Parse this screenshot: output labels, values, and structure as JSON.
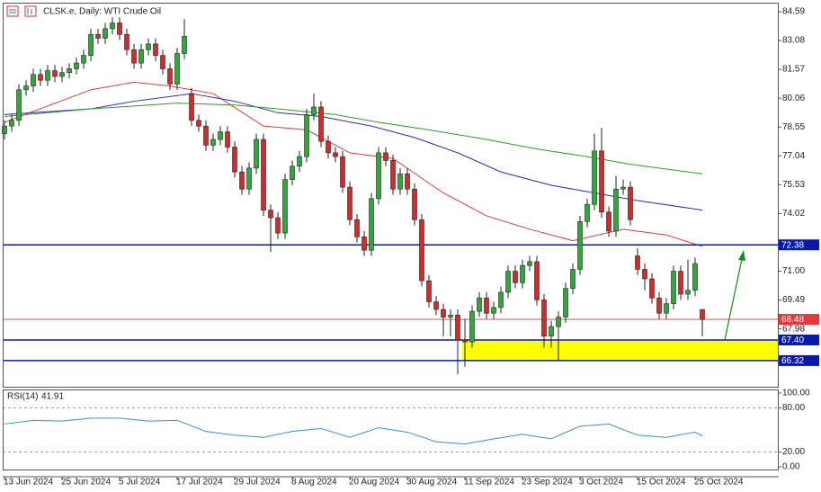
{
  "header": "CLSK.e, Daily: WTI Crude Oil",
  "chart_data": [
    {
      "type": "candlestick",
      "categories": [
        "13 Jun 2024",
        null,
        null,
        null,
        null,
        null,
        null,
        null,
        "25 Jun 2024",
        null,
        null,
        null,
        null,
        null,
        null,
        null,
        "5 Jul 2024",
        null,
        null,
        null,
        null,
        null,
        null,
        null,
        "17 Jul 2024",
        null,
        null,
        null,
        null,
        null,
        null,
        null,
        "29 Jul 2024",
        null,
        null,
        null,
        null,
        null,
        null,
        null,
        "8 Aug 2024",
        null,
        null,
        null,
        null,
        null,
        null,
        null,
        "20 Aug 2024",
        null,
        null,
        null,
        null,
        null,
        null,
        null,
        "30 Aug 2024",
        null,
        null,
        null,
        null,
        null,
        null,
        null,
        "11 Sep 2024",
        null,
        null,
        null,
        null,
        null,
        null,
        null,
        "23 Sep 2024",
        null,
        null,
        null,
        null,
        null,
        null,
        null,
        "3 Oct 2024",
        null,
        null,
        null,
        null,
        null,
        null,
        null,
        "15 Oct 2024",
        null,
        null,
        null,
        null,
        null,
        null,
        null,
        "25 Oct 2024",
        null
      ],
      "open": [
        78.2,
        78.6,
        78.9,
        80.5,
        80.7,
        81.3,
        81.0,
        81.5,
        81.2,
        81.4,
        81.6,
        81.9,
        82.3,
        83.4,
        83.2,
        83.7,
        84.0,
        83.4,
        82.6,
        81.9,
        82.6,
        82.9,
        82.3,
        81.6,
        80.8,
        82.4,
        80.3,
        78.9,
        78.6,
        77.6,
        77.9,
        78.3,
        77.5,
        76.2,
        75.3,
        76.4,
        77.9,
        74.2,
        73.8,
        73.0,
        75.8,
        76.5,
        77.0,
        79.2,
        79.6,
        77.8,
        77.2,
        77.0,
        75.4,
        73.7,
        72.8,
        72.1,
        74.8,
        77.2,
        76.8,
        75.3,
        76.1,
        75.3,
        73.7,
        70.5,
        69.4,
        69.0,
        68.6,
        68.7,
        67.4,
        67.3,
        68.9,
        69.6,
        68.8,
        69.1,
        69.9,
        71.0,
        70.4,
        71.3,
        71.5,
        69.5,
        67.6,
        68.1,
        68.6,
        70.1,
        71.1,
        73.6,
        74.5,
        77.3,
        74.1,
        73.1,
        75.3,
        75.4,
        71.8,
        71.1,
        70.6,
        69.6,
        68.8,
        69.3,
        71.0,
        69.8,
        70.0,
        69.0
      ],
      "high": [
        78.9,
        79.2,
        80.8,
        81.0,
        81.6,
        81.6,
        81.8,
        81.8,
        81.7,
        81.9,
        82.2,
        82.6,
        83.7,
        83.7,
        84.0,
        84.3,
        84.3,
        83.7,
        82.9,
        82.9,
        83.2,
        83.2,
        82.6,
        81.9,
        82.7,
        84.2,
        80.6,
        79.2,
        78.9,
        78.2,
        78.6,
        78.6,
        77.8,
        76.5,
        76.7,
        78.2,
        78.2,
        74.5,
        74.1,
        76.1,
        76.8,
        77.3,
        79.5,
        80.3,
        79.9,
        78.1,
        77.5,
        77.3,
        75.7,
        74.0,
        73.1,
        75.1,
        77.5,
        77.5,
        77.1,
        76.4,
        76.4,
        75.6,
        74.0,
        70.8,
        69.7,
        69.3,
        69.0,
        69.0,
        68.5,
        69.2,
        69.9,
        69.9,
        69.4,
        70.2,
        71.3,
        71.3,
        71.6,
        71.8,
        71.8,
        69.8,
        68.4,
        68.9,
        70.4,
        71.4,
        73.9,
        74.8,
        78.2,
        78.5,
        74.4,
        76.0,
        75.8,
        75.7,
        72.2,
        71.4,
        70.9,
        69.9,
        69.6,
        71.3,
        71.3,
        71.6,
        71.7,
        69.0
      ],
      "low": [
        77.9,
        78.3,
        78.6,
        80.2,
        80.4,
        80.7,
        80.7,
        80.9,
        80.9,
        81.1,
        81.3,
        81.6,
        82.0,
        82.9,
        82.9,
        83.4,
        83.1,
        82.3,
        81.6,
        81.6,
        82.3,
        82.0,
        81.3,
        80.5,
        80.5,
        82.1,
        78.6,
        78.3,
        77.3,
        77.3,
        77.6,
        77.2,
        75.9,
        75.0,
        75.0,
        76.1,
        73.9,
        72.0,
        72.7,
        72.7,
        75.5,
        76.2,
        76.7,
        78.9,
        77.5,
        76.9,
        76.7,
        75.1,
        73.4,
        72.5,
        71.8,
        71.8,
        74.5,
        76.5,
        75.0,
        75.0,
        75.0,
        73.4,
        70.2,
        69.1,
        68.7,
        67.6,
        67.6,
        65.6,
        66.0,
        67.0,
        68.6,
        68.5,
        68.5,
        68.8,
        69.6,
        70.1,
        70.1,
        71.0,
        69.2,
        67.0,
        67.0,
        66.3,
        68.3,
        69.8,
        70.8,
        73.3,
        74.2,
        73.8,
        72.8,
        72.8,
        75.0,
        73.4,
        70.8,
        70.0,
        69.3,
        68.5,
        68.5,
        69.0,
        69.5,
        69.5,
        69.7,
        67.6
      ],
      "close": [
        78.6,
        78.9,
        80.5,
        80.7,
        81.3,
        81.0,
        81.5,
        81.2,
        81.4,
        81.6,
        81.9,
        82.3,
        83.4,
        83.2,
        83.7,
        84.0,
        83.4,
        82.6,
        81.9,
        82.6,
        82.9,
        82.3,
        81.6,
        80.8,
        82.4,
        83.3,
        78.9,
        78.6,
        77.6,
        77.9,
        78.3,
        77.5,
        76.2,
        75.3,
        76.4,
        77.9,
        74.2,
        73.8,
        73.0,
        75.8,
        76.5,
        77.0,
        79.2,
        79.6,
        77.8,
        77.2,
        77.0,
        75.4,
        73.7,
        72.8,
        72.1,
        74.8,
        77.2,
        76.8,
        75.3,
        76.1,
        75.3,
        73.7,
        70.5,
        69.4,
        69.0,
        68.6,
        68.7,
        67.4,
        67.3,
        68.9,
        69.6,
        68.8,
        69.1,
        69.9,
        71.0,
        70.4,
        71.3,
        71.5,
        69.5,
        67.6,
        68.1,
        68.6,
        70.1,
        71.1,
        73.6,
        74.5,
        77.3,
        74.1,
        73.1,
        75.3,
        75.4,
        73.7,
        71.1,
        70.6,
        69.6,
        68.8,
        69.3,
        71.0,
        69.8,
        70.0,
        71.4,
        68.48
      ],
      "up_color": "#2fa83a",
      "down_color": "#d42a2a",
      "ylim": [
        64.95,
        85.06
      ],
      "yticks": [
        84.59,
        83.08,
        81.57,
        80.06,
        78.55,
        77.04,
        75.53,
        74.02,
        {
          "value": 71,
          "label": "71.00"
        },
        69.49,
        67.98
      ],
      "lines": [
        {
          "color": "#e03a3a",
          "x": [
            0,
            12,
            18,
            23,
            29,
            36,
            42,
            48,
            54,
            61,
            67,
            73,
            79,
            86,
            92,
            97
          ],
          "values": [
            78.8,
            80.5,
            80.9,
            80.7,
            80.3,
            78.6,
            78.4,
            77.2,
            76.9,
            75.1,
            73.9,
            73.2,
            72.6,
            73.2,
            72.9,
            72.3
          ]
        },
        {
          "color": "#2a2ab8",
          "x": [
            0,
            12,
            18,
            26,
            32,
            38,
            44,
            51,
            57,
            63,
            69,
            76,
            82,
            88,
            97
          ],
          "values": [
            79.2,
            79.5,
            79.9,
            80.3,
            79.9,
            79.3,
            79.1,
            78.6,
            78.0,
            77.2,
            76.2,
            75.5,
            75.1,
            74.7,
            74.2
          ]
        },
        {
          "color": "#2e9a2e",
          "x": [
            0,
            12,
            24,
            32,
            38,
            46,
            52,
            59,
            67,
            74,
            81,
            87,
            97
          ],
          "values": [
            79.1,
            79.5,
            79.8,
            79.7,
            79.5,
            79.2,
            78.8,
            78.4,
            77.9,
            77.4,
            77.0,
            76.6,
            76.1
          ]
        }
      ],
      "levels": [
        {
          "value": 72.38,
          "color": "#0a1aa8"
        },
        {
          "value": {
            "value": 67.4,
            "label": "67.40"
          },
          "color": "#0a1aa8"
        },
        {
          "value": 66.32,
          "color": "#0a1aa8"
        },
        {
          "value": 68.48,
          "color": "#e03a3a"
        }
      ],
      "zone": {
        "start_index": 64,
        "color": "#ffff00"
      }
    },
    {
      "type": "line",
      "name": "RSI(14)",
      "color": "#3a8fd8",
      "x": [
        0,
        4,
        8,
        12,
        16,
        20,
        24,
        28,
        32,
        36,
        40,
        44,
        48,
        52,
        56,
        60,
        64,
        68,
        72,
        76,
        80,
        84,
        88,
        92,
        96,
        97
      ],
      "values": [
        58,
        63,
        62,
        66,
        66,
        62,
        63,
        48,
        43,
        40,
        48,
        52,
        40,
        53,
        47,
        34,
        31,
        38,
        44,
        38,
        55,
        58,
        43,
        40,
        47,
        41.91
      ],
      "ylim": [
        -3.7,
        104.9
      ],
      "yticks": [
        {
          "value": 100,
          "label": "100.00"
        },
        {
          "value": 80,
          "label": "80.00"
        },
        {
          "value": 20,
          "label": "20.00"
        },
        {
          "value": 0,
          "label": "0.00"
        }
      ],
      "levels": [
        80,
        20
      ]
    }
  ]
}
